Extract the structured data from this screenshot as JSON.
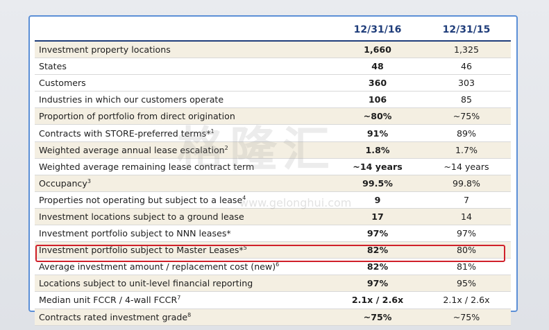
{
  "table": {
    "columns": [
      "",
      "12/31/16",
      "12/31/15"
    ],
    "rows": [
      {
        "label": "Investment property locations",
        "sup": "",
        "v16": "1,660",
        "v15": "1,325"
      },
      {
        "label": "States",
        "sup": "",
        "v16": "48",
        "v15": "46"
      },
      {
        "label": "Customers",
        "sup": "",
        "v16": "360",
        "v15": "303"
      },
      {
        "label": "Industries in which our customers operate",
        "sup": "",
        "v16": "106",
        "v15": "85"
      },
      {
        "label": "Proportion of portfolio from direct origination",
        "sup": "",
        "v16": "~80%",
        "v15": "~75%"
      },
      {
        "label": "Contracts with STORE-preferred terms*",
        "sup": "1",
        "v16": "91%",
        "v15": "89%"
      },
      {
        "label": "Weighted average annual lease escalation",
        "sup": "2",
        "v16": "1.8%",
        "v15": "1.7%"
      },
      {
        "label": "Weighted average remaining lease contract term",
        "sup": "",
        "v16": "~14 years",
        "v15": "~14 years"
      },
      {
        "label": "Occupancy",
        "sup": "3",
        "v16": "99.5%",
        "v15": "99.8%"
      },
      {
        "label": "Properties not operating but subject to a lease",
        "sup": "4",
        "v16": "9",
        "v15": "7"
      },
      {
        "label": "Investment locations subject to a ground lease",
        "sup": "",
        "v16": "17",
        "v15": "14"
      },
      {
        "label": "Investment portfolio subject to NNN leases*",
        "sup": "",
        "v16": "97%",
        "v15": "97%"
      },
      {
        "label": "Investment portfolio subject to Master Leases*",
        "sup": "5",
        "v16": "82%",
        "v15": "80%"
      },
      {
        "label": "Average investment amount / replacement cost (new)",
        "sup": "6",
        "v16": "82%",
        "v15": "81%"
      },
      {
        "label": "Locations subject to unit-level financial reporting",
        "sup": "",
        "v16": "97%",
        "v15": "95%"
      },
      {
        "label": "Median unit FCCR / 4-wall FCCR",
        "sup": "7",
        "v16": "2.1x / 2.6x",
        "v15": "2.1x / 2.6x"
      },
      {
        "label": "Contracts rated investment grade",
        "sup": "8",
        "v16": "~75%",
        "v15": "~75%"
      }
    ]
  },
  "highlighted_row_index": 13,
  "watermark": {
    "text": "格隆汇",
    "url": "www.gelonghui.com"
  },
  "colors": {
    "header_text": "#1f3d7a",
    "shade_row": "#f4efe2",
    "highlight": "#d0202a",
    "frame": "#5b8fd6"
  }
}
